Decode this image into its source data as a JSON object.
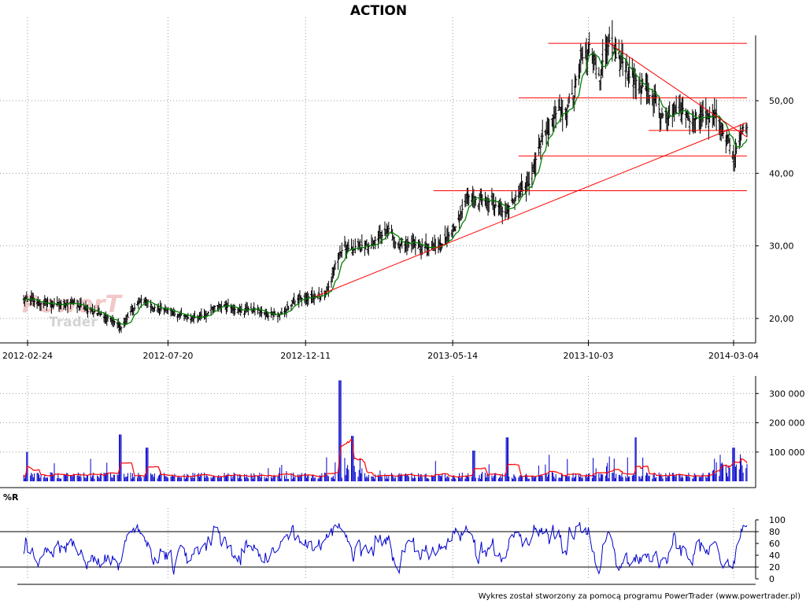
{
  "title": "ACTION",
  "footer": "Wykres został stworzony za pomocą programu PowerTrader (www.powertrader.pl)",
  "watermark": {
    "line1": "PowerT",
    "line2": "Trader"
  },
  "colors": {
    "price_bar": "#000000",
    "price_ma": "#008000",
    "trend_lines": "#ff0000",
    "volume_bar": "#0000cc",
    "volume_ma": "#ff0000",
    "williams_r": "#0000cc",
    "grid": "#999999"
  },
  "chart_data": [
    {
      "type": "ohlc",
      "name": "price",
      "title": "ACTION",
      "x_labels": [
        "2012-02-24",
        "2012-07-20",
        "2012-12-11",
        "2013-05-14",
        "2013-10-03",
        "2014-03-04"
      ],
      "y_ticks": [
        "20,00",
        "30,00",
        "40,00",
        "50,00"
      ],
      "ylim": [
        17.5,
        59
      ],
      "grid": true,
      "moving_average": true,
      "key_points": [
        {
          "date": "2012-02-24",
          "close": 22.4
        },
        {
          "date": "2012-04-12",
          "close": 22.2
        },
        {
          "date": "2012-06-01",
          "close": 19.0
        },
        {
          "date": "2012-06-22",
          "close": 22.5
        },
        {
          "date": "2012-07-20",
          "close": 21.0
        },
        {
          "date": "2012-08-10",
          "close": 19.8
        },
        {
          "date": "2012-09-20",
          "close": 21.5
        },
        {
          "date": "2012-11-01",
          "close": 20.5
        },
        {
          "date": "2012-12-11",
          "close": 23.0
        },
        {
          "date": "2013-01-02",
          "close": 23.5
        },
        {
          "date": "2013-01-21",
          "close": 30.2
        },
        {
          "date": "2013-02-11",
          "close": 29.8
        },
        {
          "date": "2013-03-08",
          "close": 32.3
        },
        {
          "date": "2013-04-10",
          "close": 29.0
        },
        {
          "date": "2013-05-14",
          "close": 32.5
        },
        {
          "date": "2013-06-04",
          "close": 36.5
        },
        {
          "date": "2013-07-10",
          "close": 36.0
        },
        {
          "date": "2013-08-01",
          "close": 40.0
        },
        {
          "date": "2013-08-22",
          "close": 47.0
        },
        {
          "date": "2013-09-12",
          "close": 49.5
        },
        {
          "date": "2013-10-03",
          "close": 57.5
        },
        {
          "date": "2013-10-15",
          "close": 53.0
        },
        {
          "date": "2013-10-25",
          "close": 57.0
        },
        {
          "date": "2013-11-14",
          "close": 52.5
        },
        {
          "date": "2013-12-05",
          "close": 51.0
        },
        {
          "date": "2013-12-20",
          "close": 46.5
        },
        {
          "date": "2014-01-10",
          "close": 49.0
        },
        {
          "date": "2014-02-10",
          "close": 47.5
        },
        {
          "date": "2014-02-25",
          "close": 44.0
        },
        {
          "date": "2014-03-04",
          "close": 43.5
        },
        {
          "date": "2014-03-18",
          "close": 46.0
        }
      ],
      "horizontal_lines": [
        {
          "level": 37.6,
          "from": "2013-04-24",
          "to": "2014-03-18"
        },
        {
          "level": 42.4,
          "from": "2013-07-22",
          "to": "2014-03-18"
        },
        {
          "level": 45.9,
          "from": "2013-12-05",
          "to": "2014-03-18"
        },
        {
          "level": 50.4,
          "from": "2013-07-22",
          "to": "2014-03-18"
        },
        {
          "level": 57.9,
          "from": "2013-08-22",
          "to": "2014-03-18"
        }
      ],
      "trend_lines": [
        {
          "from": {
            "date": "2012-12-21",
            "value": 23.0
          },
          "to": {
            "date": "2014-03-18",
            "value": 47.0
          }
        },
        {
          "from": {
            "date": "2013-10-25",
            "value": 57.9
          },
          "to": {
            "date": "2014-03-18",
            "value": 45.0
          }
        }
      ]
    },
    {
      "type": "bar",
      "name": "volume",
      "y_ticks": [
        "100 000",
        "200 000",
        "300 000"
      ],
      "ylim": [
        0,
        360000
      ],
      "moving_average": true,
      "peaks": [
        {
          "date": "2012-02-24",
          "value": 100000
        },
        {
          "date": "2012-05-31",
          "value": 160000
        },
        {
          "date": "2012-06-28",
          "value": 115000
        },
        {
          "date": "2013-01-16",
          "value": 345000
        },
        {
          "date": "2013-01-29",
          "value": 155000
        },
        {
          "date": "2013-06-05",
          "value": 105000
        },
        {
          "date": "2013-07-10",
          "value": 150000
        },
        {
          "date": "2013-11-22",
          "value": 150000
        },
        {
          "date": "2014-03-04",
          "value": 115000
        }
      ]
    },
    {
      "type": "line",
      "name": "williams_r",
      "label": "%R",
      "y_ticks": [
        "0",
        "20",
        "40",
        "60",
        "80",
        "100"
      ],
      "ylim": [
        0,
        100
      ],
      "reference_levels": [
        20,
        80
      ]
    }
  ]
}
